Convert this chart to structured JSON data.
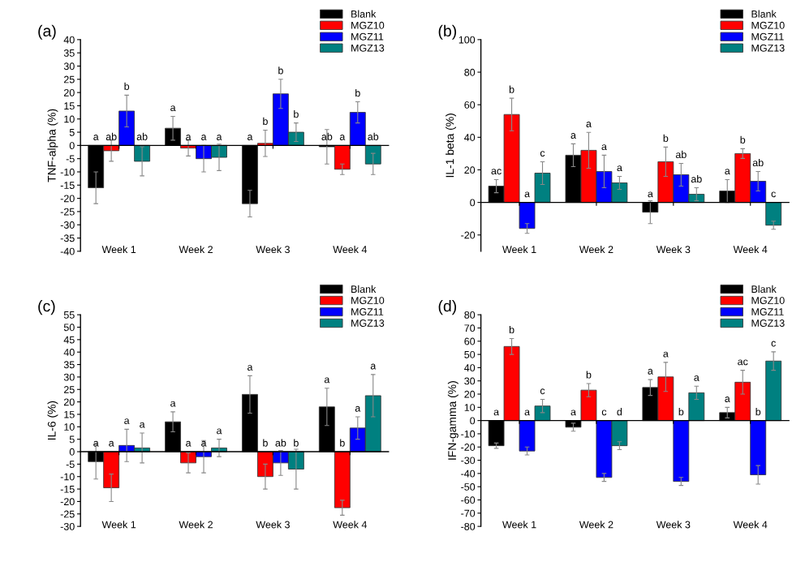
{
  "chart_data": [
    {
      "type": "bar",
      "title": "(a)",
      "ylabel": "TNF-alpha (%)",
      "categories": [
        "Week 1",
        "Week 2",
        "Week 3",
        "Week 4"
      ],
      "ylim": [
        -40,
        40
      ],
      "yticks": [
        -40,
        -35,
        -30,
        -25,
        -20,
        -15,
        -10,
        -5,
        0,
        5,
        10,
        15,
        20,
        25,
        30,
        35,
        40
      ],
      "legend": "top right",
      "series": [
        {
          "name": "Blank",
          "color": "#000000",
          "values": [
            -16,
            6.5,
            -22,
            -0.5
          ],
          "errors": [
            6,
            4.5,
            5,
            6.5
          ],
          "value_labels": [
            "a",
            "a",
            "a",
            "ab"
          ]
        },
        {
          "name": "MGZ10",
          "color": "#ff0000",
          "values": [
            -2,
            -1,
            0.8,
            -9
          ],
          "errors": [
            4,
            3,
            5,
            2
          ],
          "value_labels": [
            "ab",
            "a",
            "b",
            "a"
          ]
        },
        {
          "name": "MGZ11",
          "color": "#0000ff",
          "values": [
            13,
            -5,
            19.5,
            12.5
          ],
          "errors": [
            6,
            5,
            5.5,
            4
          ],
          "value_labels": [
            "b",
            "a",
            "b",
            "b"
          ]
        },
        {
          "name": "MGZ13",
          "color": "#008080",
          "values": [
            -6,
            -4.5,
            5,
            -7
          ],
          "errors": [
            5.5,
            5,
            3.5,
            4
          ],
          "value_labels": [
            "ab",
            "a",
            "b",
            "ab"
          ]
        }
      ]
    },
    {
      "type": "bar",
      "title": "(b)",
      "ylabel": "IL-1 beta (%)",
      "categories": [
        "Week 1",
        "Week 2",
        "Week 3",
        "Week 4"
      ],
      "ylim": [
        -30,
        100
      ],
      "yticks": [
        -20,
        0,
        20,
        40,
        60,
        80,
        100
      ],
      "legend": "top right",
      "series": [
        {
          "name": "Blank",
          "color": "#000000",
          "values": [
            10,
            29,
            -6,
            7
          ],
          "errors": [
            4,
            7,
            7,
            7
          ],
          "value_labels": [
            "ac",
            "a",
            "a",
            "a"
          ]
        },
        {
          "name": "MGZ10",
          "color": "#ff0000",
          "values": [
            54,
            32,
            25,
            30
          ],
          "errors": [
            10,
            11,
            9,
            3
          ],
          "value_labels": [
            "b",
            "a",
            "b",
            "b"
          ]
        },
        {
          "name": "MGZ11",
          "color": "#0000ff",
          "values": [
            -16,
            19,
            17,
            13
          ],
          "errors": [
            3,
            10,
            7,
            6
          ],
          "value_labels": [
            "a",
            "a",
            "ab",
            "ab"
          ]
        },
        {
          "name": "MGZ13",
          "color": "#008080",
          "values": [
            18,
            12,
            5,
            -14
          ],
          "errors": [
            7,
            4,
            4,
            2.5
          ],
          "value_labels": [
            "c",
            "a",
            "ab",
            "c"
          ]
        }
      ]
    },
    {
      "type": "bar",
      "title": "(c)",
      "ylabel": "IL-6 (%)",
      "categories": [
        "Week 1",
        "Week 2",
        "Week 3",
        "Week 4"
      ],
      "ylim": [
        -30,
        55
      ],
      "yticks": [
        -30,
        -25,
        -20,
        -15,
        -10,
        -5,
        0,
        5,
        10,
        15,
        20,
        25,
        30,
        35,
        40,
        45,
        50,
        55
      ],
      "legend": "top right",
      "series": [
        {
          "name": "Blank",
          "color": "#000000",
          "values": [
            -4,
            12,
            23,
            18
          ],
          "errors": [
            7,
            4,
            7.5,
            7.5
          ],
          "value_labels": [
            "a",
            "a",
            "a",
            "a"
          ]
        },
        {
          "name": "MGZ10",
          "color": "#ff0000",
          "values": [
            -14.5,
            -4.5,
            -10,
            -22.5
          ],
          "errors": [
            5.5,
            4,
            5,
            3
          ],
          "value_labels": [
            "a",
            "a",
            "b",
            "b"
          ]
        },
        {
          "name": "MGZ11",
          "color": "#0000ff",
          "values": [
            2.5,
            -2,
            -4.5,
            9.5
          ],
          "errors": [
            6.5,
            6.5,
            5,
            4.5
          ],
          "value_labels": [
            "a",
            "a",
            "ab",
            "a"
          ]
        },
        {
          "name": "MGZ13",
          "color": "#008080",
          "values": [
            1.5,
            1.5,
            -7,
            22.5
          ],
          "errors": [
            6,
            3.5,
            8,
            8.5
          ],
          "value_labels": [
            "a",
            "a",
            "b",
            "a"
          ]
        }
      ]
    },
    {
      "type": "bar",
      "title": "(d)",
      "ylabel": "IFN-gamma (%)",
      "categories": [
        "Week 1",
        "Week 2",
        "Week 3",
        "Week 4"
      ],
      "ylim": [
        -80,
        80
      ],
      "yticks": [
        -80,
        -70,
        -60,
        -50,
        -40,
        -30,
        -20,
        -10,
        0,
        10,
        20,
        30,
        40,
        50,
        60,
        70,
        80
      ],
      "legend": "top right",
      "series": [
        {
          "name": "Blank",
          "color": "#000000",
          "values": [
            -19,
            -5,
            25,
            6
          ],
          "errors": [
            2,
            3,
            6,
            4
          ],
          "value_labels": [
            "a",
            "a",
            "a",
            "a"
          ]
        },
        {
          "name": "MGZ10",
          "color": "#ff0000",
          "values": [
            56,
            23,
            33,
            29
          ],
          "errors": [
            6,
            5,
            11,
            9
          ],
          "value_labels": [
            "b",
            "b",
            "a",
            "ac"
          ]
        },
        {
          "name": "MGZ11",
          "color": "#0000ff",
          "values": [
            -23,
            -43,
            -46,
            -41
          ],
          "errors": [
            3,
            3,
            3,
            7
          ],
          "value_labels": [
            "a",
            "c",
            "b",
            "b"
          ]
        },
        {
          "name": "MGZ13",
          "color": "#008080",
          "values": [
            11,
            -19,
            21,
            45
          ],
          "errors": [
            5,
            3,
            5,
            7
          ],
          "value_labels": [
            "c",
            "d",
            "a",
            "c"
          ]
        }
      ]
    }
  ]
}
